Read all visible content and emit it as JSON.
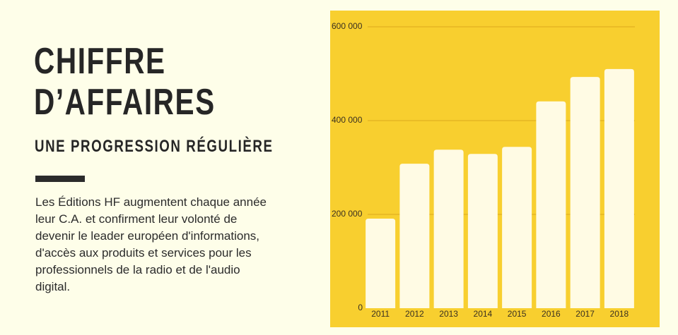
{
  "header": {
    "title": [
      "CHIFFRE",
      "D’AFFAIRES"
    ],
    "subtitle": "UNE PROGRESSION RÉGULIÈRE"
  },
  "body": [
    "Les Éditions HF augmentent chaque année",
    "leur C.A. et confirment leur volonté de",
    "devenir le leader européen d'informations,",
    "d'accès aux produits et services pour les",
    "professionnels de la radio et de l'audio",
    "digital."
  ],
  "chart_data": {
    "type": "bar",
    "categories": [
      "2011",
      "2012",
      "2013",
      "2014",
      "2015",
      "2016",
      "2017",
      "2018"
    ],
    "values": [
      191000,
      308000,
      338000,
      329000,
      344000,
      441000,
      493000,
      510000
    ],
    "color": "#fffbe4",
    "ylim": [
      0,
      600000
    ],
    "yticks": [
      0,
      {
        "value": 200000,
        "label": "200 000"
      },
      {
        "value": 400000,
        "label": "400 000"
      },
      {
        "value": 600000,
        "label": "600 000"
      }
    ],
    "grid": true
  }
}
